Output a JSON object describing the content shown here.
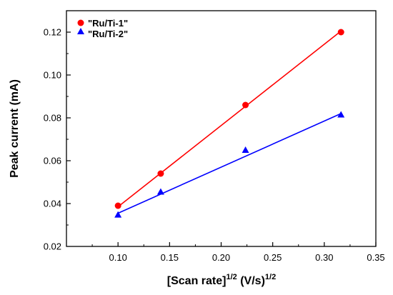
{
  "chart_data": {
    "type": "scatter",
    "xlabel": {
      "main": "[Scan rate]",
      "sup1": "1/2",
      "mid": " (V/s)",
      "sup2": "1/2"
    },
    "ylabel": "Peak current (mA)",
    "xlim": [
      0.05,
      0.35
    ],
    "ylim": [
      0.02,
      0.13
    ],
    "xticks": [
      "0.10",
      "0.15",
      "0.20",
      "0.25",
      "0.30",
      "0.35"
    ],
    "yticks": [
      "0.02",
      "0.04",
      "0.06",
      "0.08",
      "0.10",
      "0.12"
    ],
    "grid": false,
    "legend_position": "top-left",
    "series": [
      {
        "name": "\"Ru/Ti-1\"",
        "color": "#ff0000",
        "marker": "circle",
        "x": [
          0.1,
          0.1414,
          0.2236,
          0.3162
        ],
        "y": [
          0.039,
          0.054,
          0.086,
          0.12
        ],
        "fit": {
          "x": [
            0.1,
            0.3162
          ],
          "y": [
            0.0385,
            0.1205
          ]
        }
      },
      {
        "name": "\"Ru/Ti-2\"",
        "color": "#0000ff",
        "marker": "triangle",
        "x": [
          0.1,
          0.1414,
          0.2236,
          0.3162
        ],
        "y": [
          0.0348,
          0.0455,
          0.065,
          0.0815
        ],
        "fit": {
          "x": [
            0.1,
            0.3162
          ],
          "y": [
            0.0355,
            0.082
          ]
        }
      }
    ]
  }
}
